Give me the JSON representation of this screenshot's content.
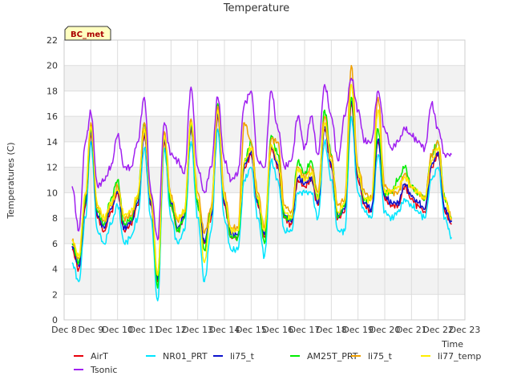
{
  "chart_data": {
    "type": "line",
    "title": "Temperature",
    "xlabel": "Time",
    "ylabel": "Temperatures (C)",
    "ylim": [
      0,
      22
    ],
    "xlim": [
      8,
      23
    ],
    "yticks": [
      0,
      2,
      4,
      6,
      8,
      10,
      12,
      14,
      16,
      18,
      20,
      22
    ],
    "xticks": [
      {
        "v": 8,
        "label": "Dec 8"
      },
      {
        "v": 9,
        "label": "Dec 9"
      },
      {
        "v": 10,
        "label": "Dec 10"
      },
      {
        "v": 11,
        "label": "Dec 11"
      },
      {
        "v": 12,
        "label": "Dec 12"
      },
      {
        "v": 13,
        "label": "Dec 13"
      },
      {
        "v": 14,
        "label": "Dec 14"
      },
      {
        "v": 15,
        "label": "Dec 15"
      },
      {
        "v": 16,
        "label": "Dec 16"
      },
      {
        "v": 17,
        "label": "Dec 17"
      },
      {
        "v": 18,
        "label": "Dec 18"
      },
      {
        "v": 19,
        "label": "Dec 19"
      },
      {
        "v": 20,
        "label": "Dec 20"
      },
      {
        "v": 21,
        "label": "Dec 21"
      },
      {
        "v": 22,
        "label": "Dec 22"
      },
      {
        "v": 23,
        "label": "Dec 23"
      }
    ],
    "station_label": "BC_met",
    "grid": true,
    "legend_position": "bottom",
    "base_x": [
      8.3,
      8.55,
      8.8,
      9.0,
      9.25,
      9.5,
      9.75,
      10.0,
      10.25,
      10.5,
      10.75,
      11.0,
      11.25,
      11.5,
      11.75,
      12.0,
      12.25,
      12.5,
      12.75,
      13.0,
      13.25,
      13.5,
      13.75,
      14.0,
      14.25,
      14.5,
      14.75,
      15.0,
      15.25,
      15.5,
      15.75,
      16.0,
      16.25,
      16.5,
      16.75,
      17.0,
      17.25,
      17.5,
      17.75,
      18.0,
      18.25,
      18.5,
      18.75,
      19.0,
      19.25,
      19.5,
      19.75,
      20.0,
      20.25,
      20.5,
      20.75,
      21.0,
      21.25,
      21.5,
      21.75,
      22.0,
      22.25,
      22.5
    ],
    "series": [
      {
        "name": "AirT",
        "color": "#e8000b",
        "values": [
          5.5,
          4.0,
          9.0,
          14.5,
          8.0,
          7.0,
          8.5,
          10.0,
          7.0,
          7.5,
          9.0,
          14.5,
          9.0,
          3.0,
          14.0,
          9.0,
          7.0,
          8.0,
          15.0,
          9.0,
          6.0,
          8.0,
          16.0,
          9.0,
          6.5,
          6.5,
          12.0,
          13.0,
          9.0,
          6.5,
          13.5,
          12.0,
          8.0,
          7.5,
          11.0,
          10.5,
          11.0,
          9.0,
          15.0,
          12.0,
          8.0,
          8.5,
          17.0,
          11.0,
          9.0,
          8.5,
          14.0,
          9.5,
          9.0,
          9.0,
          10.5,
          9.5,
          9.0,
          8.5,
          12.0,
          13.0,
          8.5,
          7.5
        ]
      },
      {
        "name": "NR01_PRT",
        "color": "#00e5ff",
        "values": [
          4.5,
          3.0,
          8.0,
          14.0,
          7.0,
          6.0,
          7.5,
          9.0,
          6.0,
          6.5,
          8.0,
          13.5,
          8.0,
          1.5,
          13.5,
          8.0,
          6.0,
          7.0,
          14.0,
          8.0,
          3.0,
          7.0,
          15.0,
          8.0,
          5.5,
          5.5,
          11.0,
          12.0,
          8.0,
          5.0,
          12.5,
          11.0,
          7.0,
          7.0,
          10.0,
          10.0,
          10.0,
          8.0,
          14.0,
          11.0,
          7.0,
          7.0,
          16.0,
          10.0,
          8.5,
          8.0,
          13.0,
          8.5,
          8.0,
          8.5,
          9.5,
          9.0,
          8.5,
          8.0,
          11.0,
          12.0,
          8.0,
          6.5
        ]
      },
      {
        "name": "li75_t",
        "color": "#0c11cc",
        "values": [
          5.8,
          4.2,
          9.2,
          14.8,
          8.2,
          7.2,
          8.7,
          10.2,
          7.2,
          7.7,
          9.2,
          14.8,
          9.2,
          3.2,
          14.2,
          9.2,
          7.2,
          8.2,
          15.2,
          9.2,
          6.2,
          8.2,
          16.2,
          9.2,
          6.7,
          6.7,
          12.2,
          13.2,
          9.2,
          6.7,
          13.7,
          12.2,
          8.2,
          7.7,
          11.2,
          10.7,
          11.2,
          9.2,
          15.2,
          12.2,
          8.2,
          8.7,
          17.2,
          11.2,
          9.2,
          8.7,
          14.2,
          9.7,
          9.2,
          9.2,
          10.7,
          9.7,
          9.2,
          8.7,
          12.2,
          13.2,
          8.7,
          7.7
        ]
      },
      {
        "name": "AM25T_PRT",
        "color": "#00ee00",
        "values": [
          6.0,
          4.5,
          9.5,
          15.0,
          8.5,
          7.5,
          9.5,
          11.0,
          7.5,
          8.0,
          9.5,
          15.5,
          9.5,
          2.5,
          14.5,
          9.0,
          7.0,
          8.0,
          15.5,
          9.0,
          5.5,
          8.5,
          17.0,
          9.5,
          6.5,
          6.5,
          12.5,
          14.0,
          9.5,
          6.0,
          14.5,
          13.0,
          8.0,
          8.0,
          12.5,
          11.5,
          12.5,
          9.5,
          16.5,
          13.0,
          8.0,
          9.0,
          17.5,
          12.0,
          9.5,
          9.5,
          15.0,
          10.0,
          10.0,
          11.0,
          12.0,
          10.5,
          10.0,
          9.5,
          13.0,
          14.0,
          9.5,
          8.0
        ]
      },
      {
        "name": "li75_t",
        "color": "#f0a000",
        "values": [
          6.2,
          4.8,
          9.8,
          15.5,
          8.8,
          7.8,
          9.0,
          10.5,
          8.0,
          8.2,
          9.5,
          15.5,
          9.8,
          3.5,
          14.8,
          9.8,
          7.8,
          8.5,
          15.8,
          10.0,
          6.8,
          8.8,
          16.8,
          10.0,
          7.2,
          7.2,
          15.5,
          14.0,
          10.0,
          7.2,
          14.2,
          14.0,
          9.0,
          8.5,
          12.0,
          11.2,
          12.0,
          10.0,
          16.0,
          12.8,
          9.0,
          9.5,
          20.0,
          12.0,
          10.0,
          9.5,
          17.5,
          10.5,
          10.0,
          10.0,
          11.5,
          10.5,
          10.0,
          9.5,
          13.0,
          14.0,
          9.5,
          8.0
        ]
      },
      {
        "name": "li77_temp",
        "color": "#ffee00",
        "values": [
          6.3,
          5.0,
          10.0,
          15.2,
          9.0,
          8.0,
          9.2,
          10.2,
          8.2,
          8.5,
          9.8,
          15.0,
          9.5,
          3.5,
          14.5,
          9.5,
          8.0,
          8.5,
          15.5,
          9.5,
          4.5,
          8.5,
          16.5,
          9.5,
          7.0,
          7.0,
          12.5,
          13.5,
          9.5,
          7.0,
          13.8,
          12.5,
          8.5,
          8.0,
          11.8,
          11.0,
          11.5,
          9.5,
          15.5,
          12.5,
          8.5,
          9.2,
          18.5,
          11.5,
          9.5,
          9.5,
          16.5,
          10.0,
          10.2,
          10.5,
          11.2,
          10.5,
          10.0,
          9.5,
          12.5,
          13.5,
          9.5,
          8.0
        ]
      },
      {
        "name": "Tsonic",
        "color": "#a020f0",
        "values": [
          10.5,
          7.0,
          14.0,
          16.3,
          10.5,
          11.0,
          12.0,
          14.5,
          12.0,
          12.0,
          14.0,
          17.5,
          10.0,
          6.3,
          15.5,
          13.0,
          12.5,
          11.5,
          18.3,
          12.0,
          10.0,
          12.0,
          17.5,
          12.5,
          11.0,
          11.5,
          17.0,
          18.0,
          12.5,
          12.0,
          18.0,
          15.0,
          12.0,
          12.5,
          16.0,
          13.5,
          16.0,
          13.0,
          18.5,
          16.0,
          12.5,
          16.0,
          19.0,
          16.5,
          14.0,
          14.0,
          18.0,
          15.0,
          13.5,
          14.0,
          15.0,
          14.5,
          14.0,
          13.5,
          17.0,
          15.0,
          13.0,
          13.0
        ]
      }
    ]
  }
}
